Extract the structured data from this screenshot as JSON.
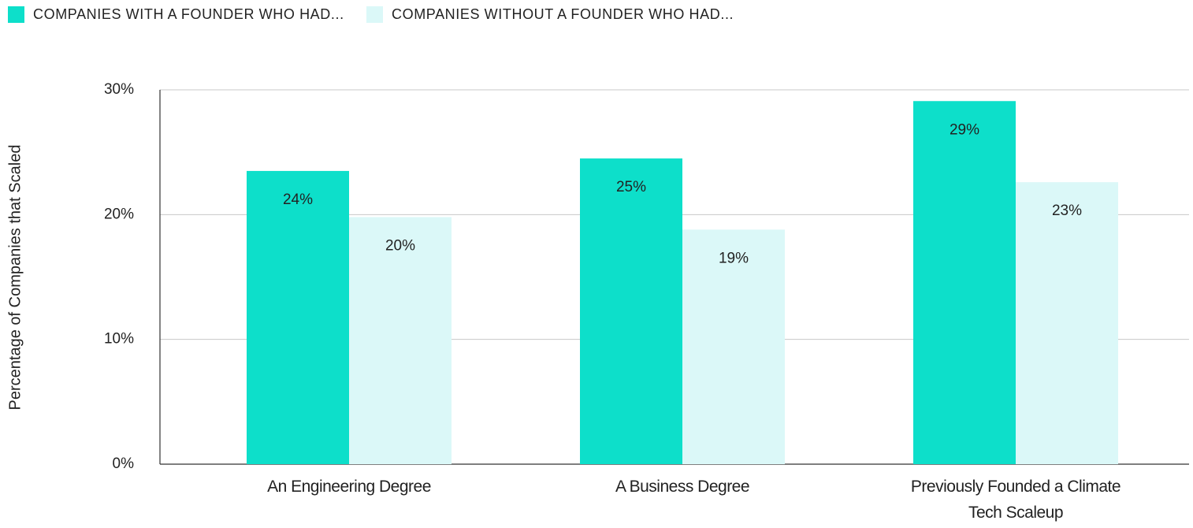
{
  "chart_data": {
    "type": "bar",
    "y_label": "Percentage of Companies that Scaled",
    "categories": [
      "An Engineering Degree",
      "A Business Degree",
      "Previously Founded a Climate Tech Scaleup"
    ],
    "series": [
      {
        "name": "COMPANIES WITH A FOUNDER WHO HAD...",
        "color": "#0ddfca",
        "values": [
          23.5,
          24.5,
          29.1
        ],
        "value_labels": [
          "24%",
          "25%",
          "29%"
        ]
      },
      {
        "name": "COMPANIES WITHOUT A FOUNDER WHO HAD...",
        "color": "#dbf8f8",
        "values": [
          19.8,
          18.8,
          22.6
        ],
        "value_labels": [
          "20%",
          "19%",
          "23%"
        ]
      }
    ],
    "ylim": [
      0,
      30
    ],
    "yticks": [
      {
        "value": 0,
        "label": "0%"
      },
      {
        "value": 10,
        "label": "10%"
      },
      {
        "value": 20,
        "label": "20%"
      },
      {
        "value": 30,
        "label": "30%"
      }
    ],
    "grid": true,
    "legend": "top-left"
  }
}
